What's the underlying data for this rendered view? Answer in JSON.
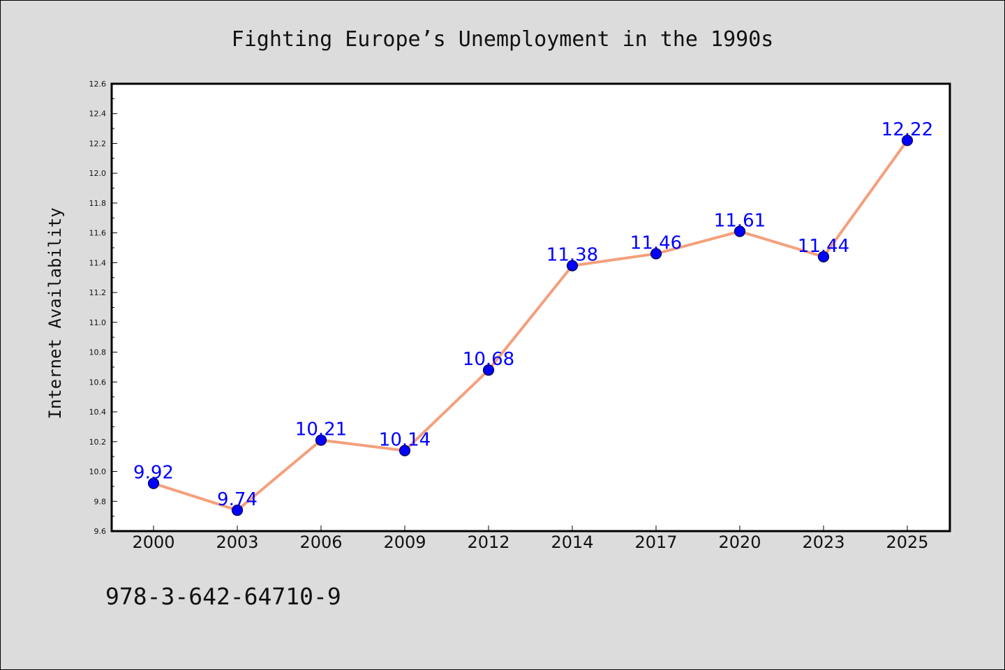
{
  "chart_data": {
    "type": "line",
    "title": "Fighting Europe’s Unemployment in the 1990s",
    "xlabel": "",
    "ylabel": "Internet Availability",
    "categories": [
      "2000",
      "2003",
      "2006",
      "2009",
      "2012",
      "2014",
      "2017",
      "2020",
      "2023",
      "2025"
    ],
    "values": [
      9.92,
      9.74,
      10.21,
      10.14,
      10.68,
      11.38,
      11.46,
      11.61,
      11.44,
      12.22
    ],
    "data_labels": [
      "9.92",
      "9.74",
      "10.21",
      "10.14",
      "10.68",
      "11.38",
      "11.46",
      "11.61",
      "11.44",
      "12.22"
    ],
    "ylim": [
      9.6,
      12.6
    ],
    "y_ticks": [
      "9.6",
      "9.8",
      "10.0",
      "10.2",
      "10.4",
      "10.6",
      "10.8",
      "11.0",
      "11.2",
      "11.4",
      "11.6",
      "11.8",
      "12.0",
      "12.2",
      "12.4",
      "12.6"
    ],
    "grid": false,
    "legend": "none",
    "colors": {
      "line": "#f4a07c",
      "marker": "#0000ff",
      "marker_edge": "#00003a",
      "data_label": "#0000ff",
      "plot_background": "#ffffff",
      "figure_background": "#dcdcdc"
    }
  },
  "footer": {
    "code": "978-3-642-64710-9"
  }
}
